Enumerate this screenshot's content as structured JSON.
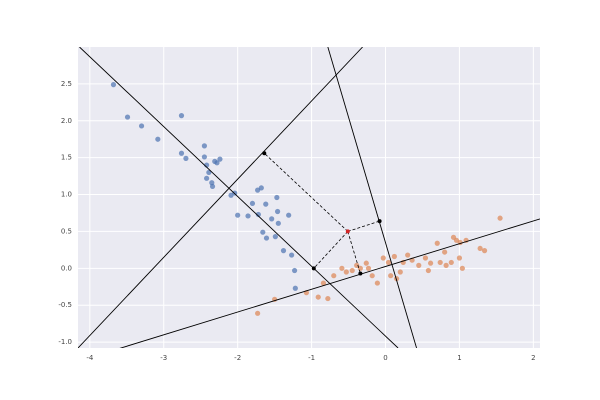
{
  "chart_data": {
    "type": "scatter",
    "xlim": [
      -4.16,
      2.09
    ],
    "ylim": [
      -1.08,
      3.0
    ],
    "xticks": [
      -4,
      -3,
      -2,
      -1,
      0,
      1,
      2
    ],
    "yticks": [
      {
        "value": -1,
        "label": "-1.0"
      },
      -0.5,
      {
        "value": 0,
        "label": "0.0"
      },
      0.5,
      {
        "value": 1,
        "label": "1.0"
      },
      1.5,
      {
        "value": 2,
        "label": "2.0"
      },
      2.5
    ],
    "grid": true,
    "series": [
      {
        "color": "#4c72b0",
        "x": [
          -3.68,
          -3.49,
          -3.3,
          -3.08,
          -2.76,
          -2.76,
          -2.7,
          -2.45,
          -2.45,
          -2.42,
          -2.39,
          -2.35,
          -2.34,
          -2.28,
          -2.24,
          -2.31,
          -2.42,
          -2.09,
          -2.04,
          -2.0,
          -1.86,
          -1.8,
          -1.73,
          -1.68,
          -1.72,
          -1.66,
          -1.61,
          -1.62,
          -1.54,
          -1.47,
          -1.46,
          -1.45,
          -1.49,
          -1.31,
          -1.38,
          -1.27,
          -1.23,
          -1.22
        ],
        "values": [
          2.49,
          2.05,
          1.93,
          1.75,
          2.07,
          1.56,
          1.49,
          1.66,
          1.51,
          1.4,
          1.3,
          1.16,
          1.11,
          1.43,
          1.48,
          1.45,
          1.22,
          0.99,
          1.02,
          0.72,
          0.71,
          0.88,
          1.06,
          1.09,
          0.73,
          0.49,
          0.41,
          0.87,
          0.67,
          0.96,
          0.77,
          0.61,
          0.43,
          0.72,
          0.24,
          0.18,
          -0.03,
          -0.27
        ]
      },
      {
        "color": "#dd8452",
        "x": [
          -1.73,
          -1.5,
          -1.07,
          -0.84,
          -0.91,
          -0.78,
          -0.7,
          -0.59,
          -0.53,
          -0.45,
          -0.39,
          -0.34,
          -0.26,
          -0.23,
          -0.18,
          -0.03,
          0.04,
          0.12,
          0.07,
          0.2,
          0.24,
          0.3,
          0.36,
          0.45,
          0.54,
          0.61,
          0.58,
          0.7,
          0.74,
          0.8,
          0.82,
          0.89,
          0.92,
          0.96,
          1.01,
          1.0,
          1.04,
          1.09,
          1.28,
          1.34,
          1.55,
          0.15,
          -0.11
        ],
        "values": [
          -0.61,
          -0.42,
          -0.33,
          -0.2,
          -0.39,
          -0.41,
          -0.1,
          0.0,
          -0.05,
          -0.03,
          0.04,
          0.0,
          0.07,
          0.0,
          -0.1,
          0.14,
          0.08,
          0.16,
          -0.1,
          -0.05,
          0.08,
          0.18,
          0.11,
          0.04,
          0.14,
          0.07,
          -0.03,
          0.34,
          0.08,
          0.22,
          0.04,
          0.08,
          0.42,
          0.38,
          0.35,
          0.14,
          0.0,
          0.38,
          0.27,
          0.24,
          0.68,
          -0.14,
          -0.2
        ]
      }
    ],
    "lines": [
      {
        "color": "#000000",
        "x": [
          -4.14,
          0.17
        ],
        "values": [
          3.0,
          -1.08
        ]
      },
      {
        "color": "#000000",
        "x": [
          -4.16,
          -0.31
        ],
        "values": [
          -1.08,
          3.0
        ]
      },
      {
        "color": "#000000",
        "x": [
          -0.78,
          0.42
        ],
        "values": [
          3.0,
          -1.08
        ]
      },
      {
        "color": "#000000",
        "x": [
          -3.74,
          2.09
        ],
        "values": [
          -1.13,
          0.67
        ]
      }
    ],
    "points": [
      {
        "color": "#d62728",
        "x": -0.51,
        "y": 0.5
      },
      {
        "color": "#000000",
        "x": -1.64,
        "y": 1.56
      },
      {
        "color": "#000000",
        "x": -0.08,
        "y": 0.64
      },
      {
        "color": "#000000",
        "x": -0.97,
        "y": 0.0
      },
      {
        "color": "#000000",
        "x": -0.34,
        "y": -0.07
      }
    ]
  }
}
